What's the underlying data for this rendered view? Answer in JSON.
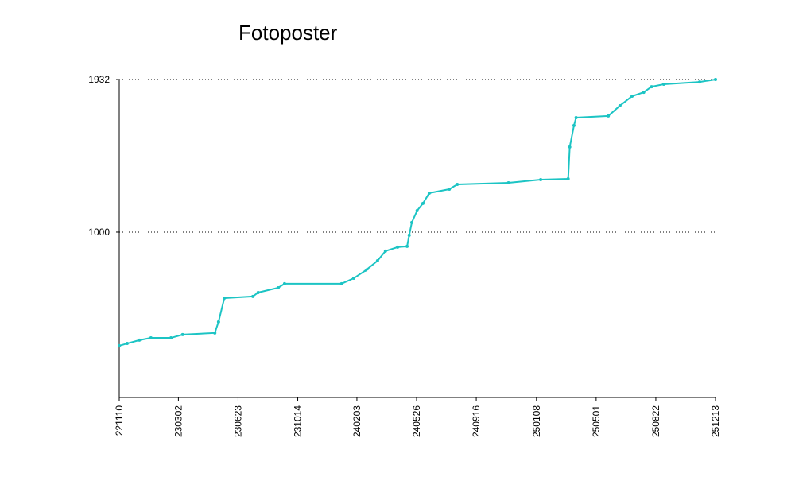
{
  "chart_data": {
    "type": "line",
    "title": "Fotoposter",
    "x": [
      "221110",
      "221125",
      "221218",
      "230109",
      "230216",
      "230310",
      "230510",
      "230517",
      "230528",
      "230721",
      "230731",
      "230907",
      "230919",
      "240105",
      "240128",
      "240220",
      "240313",
      "240328",
      "240420",
      "240508",
      "240512",
      "240517",
      "240527",
      "240607",
      "240619",
      "240727",
      "240811",
      "241116",
      "250116",
      "250309",
      "250312",
      "250320",
      "250324",
      "250524",
      "250615",
      "250708",
      "250730",
      "250814",
      "250906",
      "251113",
      "251213"
    ],
    "series": [
      {
        "name": "Fotoposter",
        "color": "#1cc4c4",
        "values": [
          306,
          320,
          340,
          354,
          354,
          374,
          384,
          452,
          597,
          607,
          631,
          660,
          685,
          685,
          718,
          767,
          825,
          884,
          908,
          913,
          981,
          1059,
          1131,
          1175,
          1238,
          1262,
          1291,
          1301,
          1320,
          1325,
          1520,
          1651,
          1699,
          1709,
          1772,
          1830,
          1854,
          1888,
          1903,
          1917,
          1932
        ]
      }
    ],
    "xlim": [
      "221110",
      "251213"
    ],
    "xticks": [
      "221110",
      "230302",
      "230623",
      "231014",
      "240203",
      "240526",
      "240916",
      "250108",
      "250501",
      "250822",
      "251213"
    ],
    "ylim": [
      -10,
      1932
    ],
    "yticks": [
      1000,
      1932
    ],
    "grid": true
  }
}
